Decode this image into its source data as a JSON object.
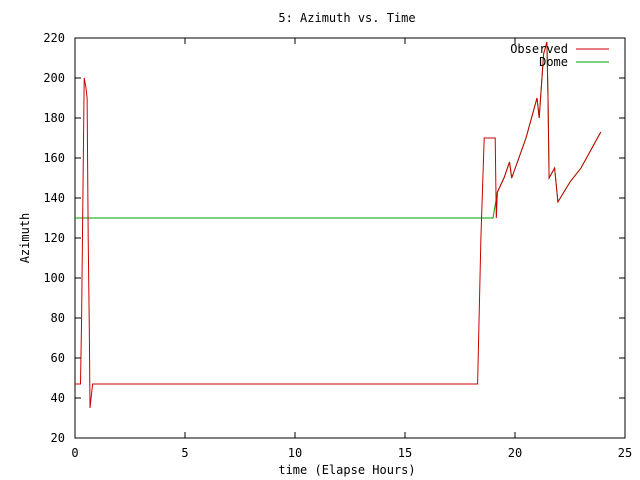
{
  "chart_data": {
    "type": "line",
    "title": "5: Azimuth vs. Time",
    "xlabel": "time (Elapse Hours)",
    "ylabel": "Azimuth",
    "xlim": [
      0,
      25
    ],
    "ylim": [
      20,
      220
    ],
    "xticks": [
      0,
      5,
      10,
      15,
      20,
      25
    ],
    "yticks": [
      20,
      40,
      60,
      80,
      100,
      120,
      140,
      160,
      180,
      200,
      220
    ],
    "grid": false,
    "legend_position": "top-right",
    "series": [
      {
        "name": "Observed",
        "color": "#cc0000",
        "points": [
          [
            0,
            47
          ],
          [
            0.25,
            47
          ],
          [
            0.3,
            80
          ],
          [
            0.37,
            150
          ],
          [
            0.42,
            200
          ],
          [
            0.5,
            195
          ],
          [
            0.55,
            190
          ],
          [
            0.6,
            120
          ],
          [
            0.65,
            75
          ],
          [
            0.68,
            35
          ],
          [
            0.8,
            47
          ],
          [
            5,
            47
          ],
          [
            10,
            47
          ],
          [
            15,
            47
          ],
          [
            18.3,
            47
          ],
          [
            18.45,
            120
          ],
          [
            18.6,
            170
          ],
          [
            19.1,
            170
          ],
          [
            19.15,
            130
          ],
          [
            19.2,
            143
          ],
          [
            19.5,
            150
          ],
          [
            19.75,
            158
          ],
          [
            19.85,
            150
          ],
          [
            20.5,
            170
          ],
          [
            20.9,
            186
          ],
          [
            21.0,
            190
          ],
          [
            21.1,
            180
          ],
          [
            21.3,
            212
          ],
          [
            21.45,
            218
          ],
          [
            21.5,
            190
          ],
          [
            21.55,
            150
          ],
          [
            21.7,
            153
          ],
          [
            21.8,
            155
          ],
          [
            21.95,
            138
          ],
          [
            22.5,
            148
          ],
          [
            23.0,
            155
          ],
          [
            23.5,
            165
          ],
          [
            23.9,
            173
          ]
        ]
      },
      {
        "name": "Dome",
        "color": "#00a000",
        "points": [
          [
            0,
            130
          ],
          [
            5,
            130
          ],
          [
            10,
            130
          ],
          [
            15,
            130
          ],
          [
            19.0,
            130
          ],
          [
            19.2,
            143
          ],
          [
            19.5,
            150
          ],
          [
            19.75,
            158
          ],
          [
            19.85,
            150
          ],
          [
            20.5,
            170
          ],
          [
            20.9,
            186
          ],
          [
            21.0,
            190
          ],
          [
            21.1,
            180
          ],
          [
            21.3,
            212
          ],
          [
            21.45,
            218
          ],
          [
            21.5,
            190
          ],
          [
            21.55,
            150
          ],
          [
            21.7,
            153
          ],
          [
            21.8,
            155
          ],
          [
            21.95,
            138
          ],
          [
            22.5,
            148
          ],
          [
            23.0,
            155
          ],
          [
            23.5,
            165
          ],
          [
            23.9,
            173
          ]
        ]
      }
    ]
  }
}
